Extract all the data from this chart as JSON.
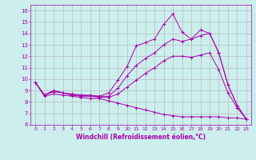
{
  "xlabel": "Windchill (Refroidissement éolien,°C)",
  "background_color": "#cceeed",
  "grid_color": "#b0b0b0",
  "line_color": "#aa00aa",
  "xlim": [
    -0.5,
    23.5
  ],
  "ylim": [
    6,
    16.5
  ],
  "xticks": [
    0,
    1,
    2,
    3,
    4,
    5,
    6,
    7,
    8,
    9,
    10,
    11,
    12,
    13,
    14,
    15,
    16,
    17,
    18,
    19,
    20,
    21,
    22,
    23
  ],
  "yticks": [
    6,
    7,
    8,
    9,
    10,
    11,
    12,
    13,
    14,
    15,
    16
  ],
  "series": [
    {
      "x": [
        0,
        1,
        2,
        3,
        4,
        5,
        6,
        7,
        8,
        9,
        10,
        11,
        12,
        13,
        14,
        15,
        16,
        17,
        18,
        19,
        20,
        21,
        22,
        23
      ],
      "y": [
        9.7,
        8.6,
        9.0,
        8.8,
        8.7,
        8.6,
        8.6,
        8.5,
        8.8,
        9.9,
        11.1,
        12.9,
        13.2,
        13.5,
        14.8,
        15.7,
        14.1,
        13.5,
        14.3,
        14.0,
        12.3,
        9.5,
        7.7,
        6.5
      ]
    },
    {
      "x": [
        0,
        1,
        2,
        3,
        4,
        5,
        6,
        7,
        8,
        9,
        10,
        11,
        12,
        13,
        14,
        15,
        16,
        17,
        18,
        19,
        20,
        21,
        22,
        23
      ],
      "y": [
        9.7,
        8.6,
        9.0,
        8.8,
        8.6,
        8.6,
        8.5,
        8.5,
        8.5,
        9.2,
        10.3,
        11.2,
        11.8,
        12.3,
        13.0,
        13.5,
        13.3,
        13.5,
        13.8,
        14.0,
        12.3,
        9.5,
        7.7,
        6.5
      ]
    },
    {
      "x": [
        0,
        1,
        2,
        3,
        4,
        5,
        6,
        7,
        8,
        9,
        10,
        11,
        12,
        13,
        14,
        15,
        16,
        17,
        18,
        19,
        20,
        21,
        22,
        23
      ],
      "y": [
        9.7,
        8.6,
        8.9,
        8.8,
        8.6,
        8.5,
        8.5,
        8.4,
        8.4,
        8.7,
        9.3,
        9.9,
        10.5,
        11.0,
        11.6,
        12.0,
        12.0,
        11.9,
        12.1,
        12.3,
        10.8,
        8.8,
        7.5,
        6.5
      ]
    },
    {
      "x": [
        0,
        1,
        2,
        3,
        4,
        5,
        6,
        7,
        8,
        9,
        10,
        11,
        12,
        13,
        14,
        15,
        16,
        17,
        18,
        19,
        20,
        21,
        22,
        23
      ],
      "y": [
        9.7,
        8.5,
        8.7,
        8.6,
        8.5,
        8.4,
        8.3,
        8.3,
        8.1,
        7.9,
        7.7,
        7.5,
        7.3,
        7.1,
        6.9,
        6.8,
        6.7,
        6.7,
        6.7,
        6.7,
        6.7,
        6.6,
        6.6,
        6.5
      ]
    }
  ]
}
